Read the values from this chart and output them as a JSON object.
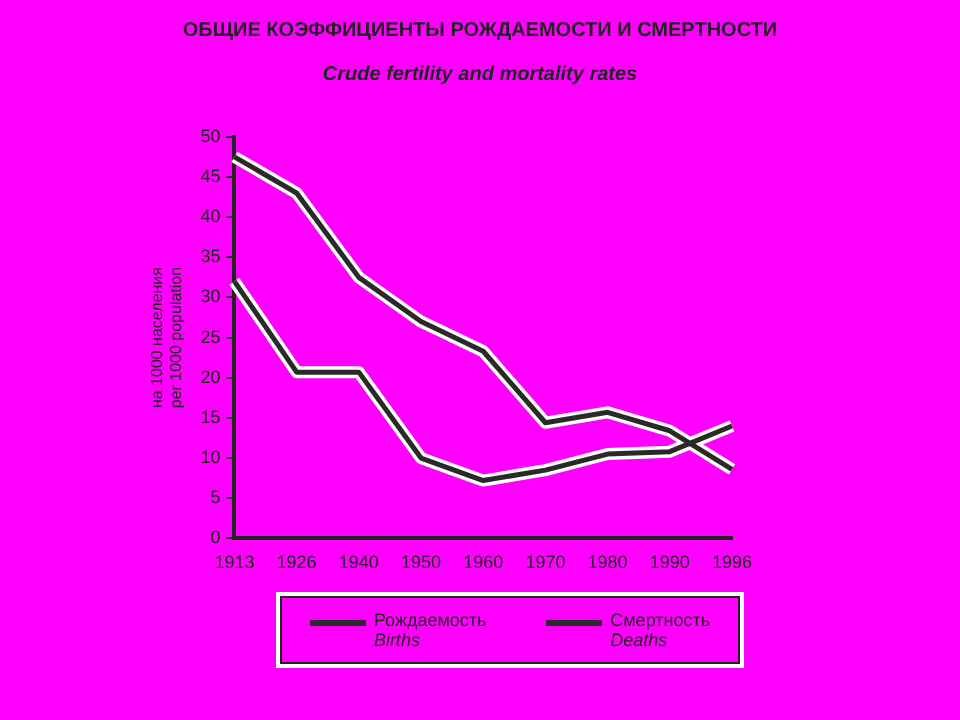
{
  "chart_data": {
    "type": "line",
    "title": "ОБЩИЕ КОЭФФИЦИЕНТЫ РОЖДАЕМОСТИ И СМЕРТНОСТИ",
    "subtitle": "Crude fertility and mortality rates",
    "ylabel": "на 1000 населения\nper 1000 population",
    "categories": [
      "1913",
      "1926",
      "1940",
      "1950",
      "1960",
      "1970",
      "1980",
      "1990",
      "1996"
    ],
    "series": [
      {
        "name": "Рождаемость\nBirths",
        "color": "#2a2a2a",
        "values": [
          47.5,
          43,
          32.5,
          27,
          23.3,
          14.4,
          15.7,
          13.4,
          8.6
        ]
      },
      {
        "name": "Смертность\nDeaths",
        "color": "#2a2a2a",
        "values": [
          32,
          20.7,
          20.7,
          10,
          7.2,
          8.5,
          10.5,
          10.8,
          14
        ]
      }
    ],
    "ylim": [
      0,
      50
    ],
    "yticks": [
      0,
      5,
      10,
      15,
      20,
      25,
      30,
      35,
      40,
      45,
      50
    ],
    "grid": false,
    "legend": "bottom",
    "marker": "none",
    "line_style": "solid"
  }
}
